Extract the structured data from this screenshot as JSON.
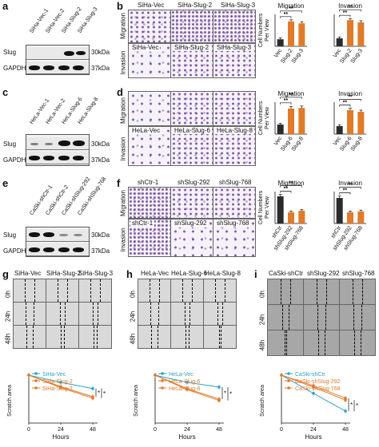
{
  "panels": {
    "a": {
      "label": "a",
      "lanes": [
        "SiHa-Vec-1",
        "SiHa-Vec-2",
        "SiHa-Slug-2",
        "SiHa-Slug-3"
      ],
      "rows": [
        {
          "name": "Slug",
          "kda": "30kDa"
        },
        {
          "name": "GAPDH",
          "kda": "37kDa"
        }
      ]
    },
    "b": {
      "label": "b",
      "columns": [
        "SiHa-Vec",
        "SiHa-Slug-2",
        "SiHa-Slug-3"
      ],
      "rows": [
        "Migration",
        "Invasion"
      ]
    },
    "c": {
      "label": "c",
      "lanes": [
        "HeLa-Vec-1",
        "HeLa-Vec-2",
        "HeLa-Slug-6",
        "HeLa-Slug-8"
      ],
      "rows": [
        {
          "name": "Slug",
          "kda": "30kDa"
        },
        {
          "name": "GAPDH",
          "kda": "37kDa"
        }
      ]
    },
    "d": {
      "label": "d",
      "columns": [
        "HeLa-Vec",
        "HeLa-Slug-6",
        "HeLa-Slug-8"
      ],
      "rows": [
        "Migration",
        "Invasion"
      ]
    },
    "e": {
      "label": "e",
      "lanes": [
        "CaSki-shCtr-1",
        "CaSki-shCtr-2",
        "CaSki-shSlug-292",
        "CaSki-shSlug-768"
      ],
      "rows": [
        {
          "name": "Slug",
          "kda": "30kDa"
        },
        {
          "name": "GAPDH",
          "kda": "37kDa"
        }
      ]
    },
    "f": {
      "label": "f",
      "columns": [
        "shCtr-1",
        "shSlug-292",
        "shSlug-768"
      ],
      "rows": [
        "Migration",
        "Invasion"
      ]
    },
    "g": {
      "label": "g",
      "columns": [
        "SiHa-Vec",
        "SiHa-Slug-2",
        "SiHa-Slug-3"
      ],
      "rows": [
        "0h",
        "24h",
        "48h"
      ]
    },
    "h": {
      "label": "h",
      "columns": [
        "HeLa-Vec",
        "HeLa-Slug-6",
        "HeLa-Slug-8"
      ],
      "rows": [
        "0h",
        "24h",
        "48h"
      ]
    },
    "i": {
      "label": "i",
      "columns": [
        "CaSki-shCtr",
        "shSlug-292",
        "shSlug-768"
      ],
      "rows": [
        "0h",
        "24h",
        "48h"
      ]
    }
  },
  "colors": {
    "dark_bar": "#2b2b2b",
    "orange": "#e07b2a",
    "blue": "#2aa1cf"
  },
  "chart_data": [
    {
      "type": "bar",
      "id": "b-migration",
      "title": "Migration",
      "ylabel": "Cell Numbers\nPer View",
      "categories": [
        "Vec",
        "Slug-2",
        "Slug-3"
      ],
      "values": [
        22,
        78,
        72
      ],
      "errors": [
        4,
        5,
        5
      ],
      "ylim": [
        0,
        100
      ],
      "sig": [
        "**",
        "**"
      ]
    },
    {
      "type": "bar",
      "id": "b-invasion",
      "title": "Invasion",
      "ylabel": "",
      "categories": [
        "Vec",
        "Slug-2",
        "Slug-3"
      ],
      "values": [
        25,
        82,
        75
      ],
      "errors": [
        4,
        5,
        5
      ],
      "ylim": [
        0,
        100
      ],
      "sig": [
        "**",
        "**"
      ]
    },
    {
      "type": "bar",
      "id": "d-migration",
      "title": "Migration",
      "ylabel": "Cell Numbers\nPer View",
      "categories": [
        "Vec",
        "Slug-6",
        "Slug-8"
      ],
      "values": [
        30,
        80,
        82
      ],
      "errors": [
        4,
        6,
        6
      ],
      "ylim": [
        0,
        100
      ],
      "sig": [
        "**",
        "**"
      ]
    },
    {
      "type": "bar",
      "id": "d-invasion",
      "title": "Invasion",
      "ylabel": "",
      "categories": [
        "Vec",
        "Slug-6",
        "Slug-8"
      ],
      "values": [
        25,
        75,
        70
      ],
      "errors": [
        4,
        6,
        5
      ],
      "ylim": [
        0,
        100
      ],
      "sig": [
        "**",
        "**"
      ]
    },
    {
      "type": "bar",
      "id": "f-migration",
      "title": "Migration",
      "ylabel": "Cell Numbers\nPer View",
      "categories": [
        "shCtr",
        "shSlug-292",
        "shSlug-768"
      ],
      "values": [
        85,
        35,
        40
      ],
      "errors": [
        6,
        4,
        4
      ],
      "ylim": [
        0,
        100
      ],
      "sig": [
        "**",
        "**"
      ]
    },
    {
      "type": "bar",
      "id": "f-invasion",
      "title": "Invasion",
      "ylabel": "",
      "categories": [
        "shCtr",
        "shSlug-292",
        "shSlug-768"
      ],
      "values": [
        80,
        35,
        38
      ],
      "errors": [
        6,
        4,
        4
      ],
      "ylim": [
        0,
        100
      ],
      "sig": [
        "**",
        "**"
      ]
    },
    {
      "type": "line",
      "id": "g-scratch",
      "xlabel": "Hours",
      "ylabel": "Scratch area",
      "x": [
        0,
        24,
        48
      ],
      "xticks": [
        "0",
        "24",
        "48"
      ],
      "ylim": [
        0,
        1.2
      ],
      "sig": [
        "*",
        "*"
      ],
      "series": [
        {
          "name": "SiHa-Vec",
          "color": "#2aa1cf",
          "values": [
            1.0,
            0.85,
            0.72
          ]
        },
        {
          "name": "SiHa-Slug-2",
          "color": "#e07b2a",
          "values": [
            1.0,
            0.76,
            0.55
          ]
        },
        {
          "name": "SiHa-Slug-3",
          "color": "#e07b2a",
          "values": [
            1.0,
            0.74,
            0.52
          ]
        }
      ]
    },
    {
      "type": "line",
      "id": "h-scratch",
      "xlabel": "Hours",
      "ylabel": "Scratch area",
      "x": [
        0,
        24,
        48
      ],
      "xticks": [
        "0",
        "24",
        "48"
      ],
      "ylim": [
        0,
        1.2
      ],
      "sig": [
        "*",
        "*"
      ],
      "series": [
        {
          "name": "HeLa-Vec",
          "color": "#2aa1cf",
          "values": [
            1.0,
            0.85,
            0.75
          ]
        },
        {
          "name": "HeLa-Slug-6",
          "color": "#e07b2a",
          "values": [
            1.0,
            0.72,
            0.5
          ]
        },
        {
          "name": "HeLa-Slug-8",
          "color": "#e07b2a",
          "values": [
            1.0,
            0.7,
            0.47
          ]
        }
      ]
    },
    {
      "type": "line",
      "id": "i-scratch",
      "xlabel": "Hours",
      "ylabel": "Scratch area",
      "x": [
        0,
        24,
        48
      ],
      "xticks": [
        "0",
        "24",
        "48"
      ],
      "ylim": [
        0,
        1.2
      ],
      "sig": [
        "*",
        "*"
      ],
      "series": [
        {
          "name": "CaSki-shCtr",
          "color": "#2aa1cf",
          "values": [
            1.0,
            0.62,
            0.25
          ]
        },
        {
          "name": "CaSki-shSlug-292",
          "color": "#e07b2a",
          "values": [
            1.0,
            0.78,
            0.52
          ]
        },
        {
          "name": "CaSki-shSlug-768",
          "color": "#e07b2a",
          "values": [
            1.0,
            0.75,
            0.48
          ]
        }
      ]
    }
  ]
}
